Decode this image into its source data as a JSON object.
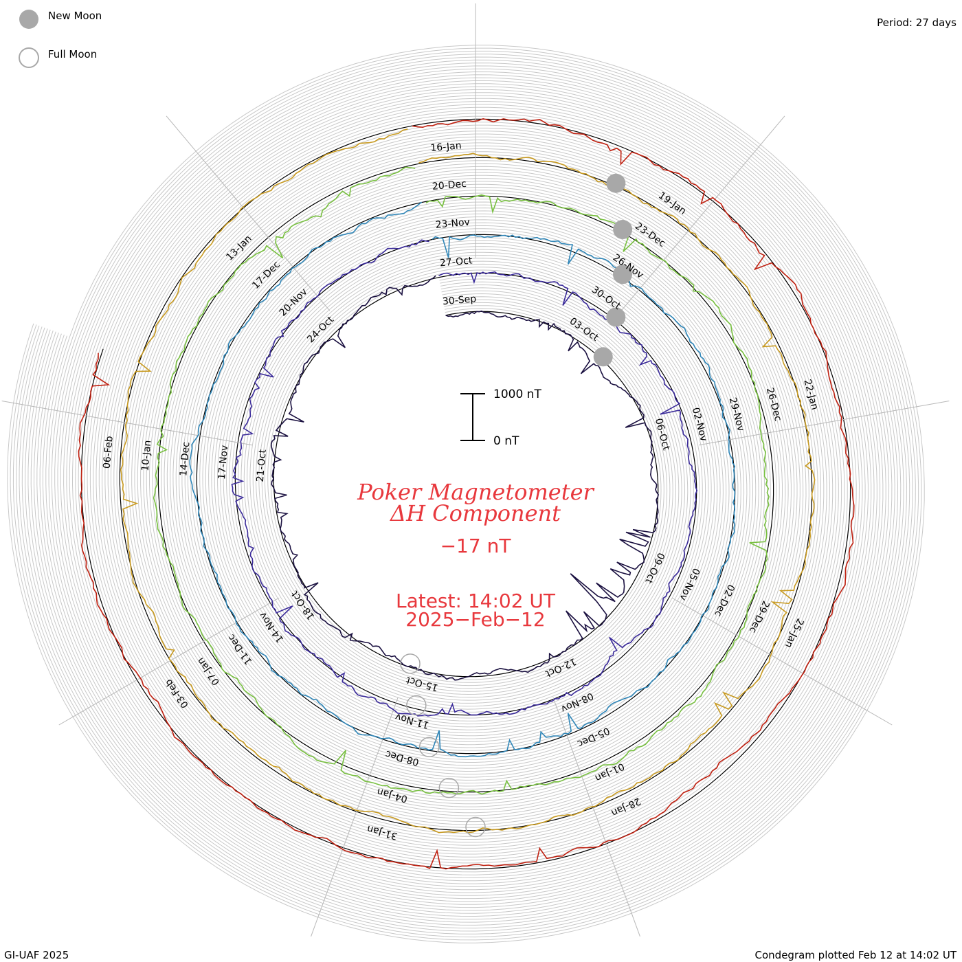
{
  "legend": {
    "new_moon_label": "New Moon",
    "full_moon_label": "Full Moon"
  },
  "period_label": "Period: 27 days",
  "footer": {
    "left": "GI-UAF 2025",
    "right": "Condegram plotted Feb 12 at 14:02 UT"
  },
  "title": {
    "line1": "Poker Magnetometer",
    "line2": "ΔH Component"
  },
  "current_value": "−17 nT",
  "latest": {
    "line1": "Latest: 14:02 UT",
    "line2": "2025−Feb−12"
  },
  "scale_bar": {
    "top_label": "1000 nT",
    "bottom_label": "0 nT"
  },
  "colors": {
    "title": "#e8383d",
    "grid": "#c8c8c8",
    "baseline": "#000000",
    "moon_fill": "#a8a8a8",
    "moon_stroke": "#a8a8a8"
  },
  "chart_data": {
    "type": "condegram",
    "period_days": 27,
    "scale_nT": [
      0,
      1000
    ],
    "current_value_nT": -17,
    "rings": [
      {
        "color": "#1a1040",
        "date_labels": [
          "30-Sep",
          "03-Oct",
          "06-Oct",
          "09-Oct",
          "12-Oct",
          "15-Oct",
          "18-Oct",
          "21-Oct",
          "24-Oct"
        ]
      },
      {
        "color": "#3a2a9a",
        "date_labels": [
          "27-Oct",
          "30-Oct",
          "02-Nov",
          "05-Nov",
          "08-Nov",
          "11-Nov",
          "14-Nov",
          "17-Nov",
          "20-Nov"
        ]
      },
      {
        "color": "#2f86b8",
        "date_labels": [
          "23-Nov",
          "26-Nov",
          "29-Nov",
          "02-Dec",
          "05-Dec",
          "08-Dec",
          "11-Dec",
          "14-Dec",
          "17-Dec"
        ]
      },
      {
        "color": "#78c040",
        "date_labels": [
          "20-Dec",
          "23-Dec",
          "26-Dec",
          "29-Dec",
          "01-Jan",
          "04-Jan",
          "07-Jan",
          "10-Jan",
          "13-Jan"
        ]
      },
      {
        "color": "#c89a20",
        "date_labels": [
          "16-Jan",
          "19-Jan",
          "22-Jan",
          "25-Jan",
          "28-Jan",
          "31-Jan",
          "03-Feb",
          "06-Feb"
        ]
      },
      {
        "color": "#c02010",
        "date_labels": []
      }
    ],
    "new_moons": [
      "Oct 2",
      "Nov 1",
      "Dec 1",
      "Dec 30",
      "Jan 29"
    ],
    "full_moons": [
      "Oct 17",
      "Nov 15",
      "Dec 15",
      "Jan 13",
      "Feb 12"
    ]
  }
}
